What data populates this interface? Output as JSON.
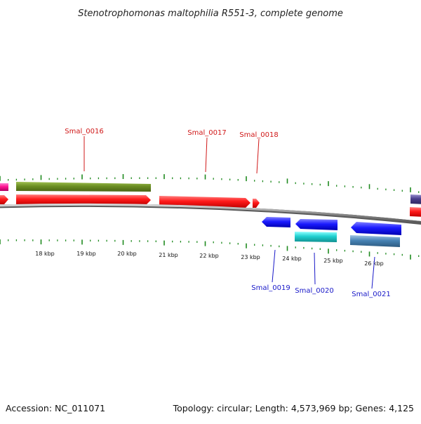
{
  "title": "Stenotrophomonas maltophilia R551-3, complete genome",
  "footer": {
    "accession": "Accession: NC_011071",
    "summary": "Topology: circular; Length: 4,573,969 bp; Genes: 4,125"
  },
  "ticks": [
    "18 kbp",
    "19 kbp",
    "20 kbp",
    "21 kbp",
    "22 kbp",
    "23 kbp",
    "24 kbp",
    "25 kbp",
    "26 kbp"
  ],
  "gene_labels_forward": [
    "Smal_0016",
    "Smal_0017",
    "Smal_0018"
  ],
  "gene_labels_reverse": [
    "Smal_0019",
    "Smal_0020",
    "Smal_0021"
  ],
  "colors": {
    "forward_cds": "#ff1a1a",
    "reverse_cds": "#1a1aff",
    "forward_feature": "#6b8e23",
    "reverse_feature_a": "#20d0d0",
    "reverse_feature_b": "#4682b4",
    "forward_label": "#d01818",
    "reverse_label": "#1818c8",
    "tick": "#1f8a1f",
    "backbone": "#8c8c8c"
  }
}
